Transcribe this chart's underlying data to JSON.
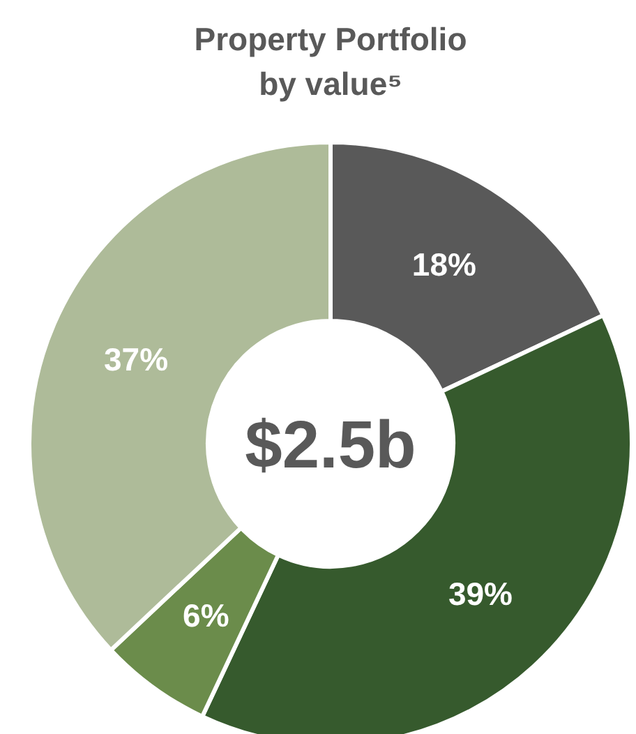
{
  "chart_data": {
    "type": "donut",
    "title": "Property Portfolio\nby value⁵",
    "categories": [
      null,
      null,
      null,
      null
    ],
    "values": [
      18,
      39,
      6,
      37
    ],
    "colors": [
      "#595959",
      "#365a2d",
      "#6b8c4b",
      "#aebb99"
    ],
    "value_labels": [
      "18%",
      "39%",
      "6%",
      "37%"
    ],
    "annotations": [
      "$2.5b"
    ]
  }
}
